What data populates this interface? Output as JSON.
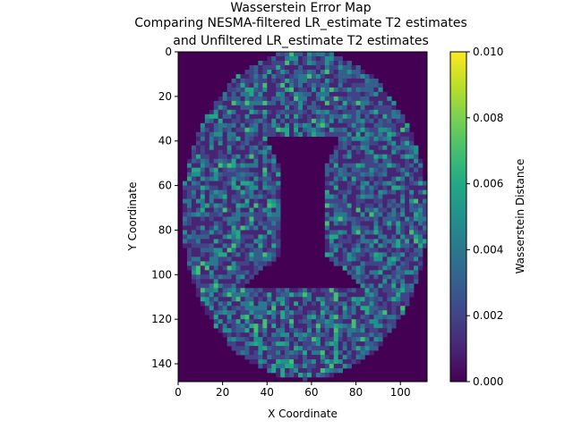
{
  "chart_data": {
    "type": "heatmap",
    "title_lines": [
      "Wasserstein Error Map",
      "Comparing NESMA-filtered LR_estimate T2 estimates",
      "and Unfiltered LR_estimate T2 estimates"
    ],
    "xlabel": "X Coordinate",
    "ylabel": "Y Coordinate",
    "xlim": [
      0,
      112
    ],
    "ylim": [
      148,
      0
    ],
    "xticks": [
      "0",
      "20",
      "40",
      "60",
      "80",
      "100"
    ],
    "yticks": [
      "0",
      "20",
      "40",
      "60",
      "80",
      "100",
      "120",
      "140"
    ],
    "xtick_values": [
      0,
      20,
      40,
      60,
      80,
      100
    ],
    "ytick_values": [
      0,
      20,
      40,
      60,
      80,
      100,
      120,
      140
    ],
    "colorbar": {
      "label": "Wasserstein Distance",
      "range": [
        0.0,
        0.01
      ],
      "ticks": [
        "0.000",
        "0.002",
        "0.004",
        "0.006",
        "0.008",
        "0.010"
      ],
      "tick_values": [
        0.0,
        0.002,
        0.004,
        0.006,
        0.008,
        0.01
      ],
      "colormap": "viridis"
    },
    "grid": false,
    "legend": "none"
  }
}
